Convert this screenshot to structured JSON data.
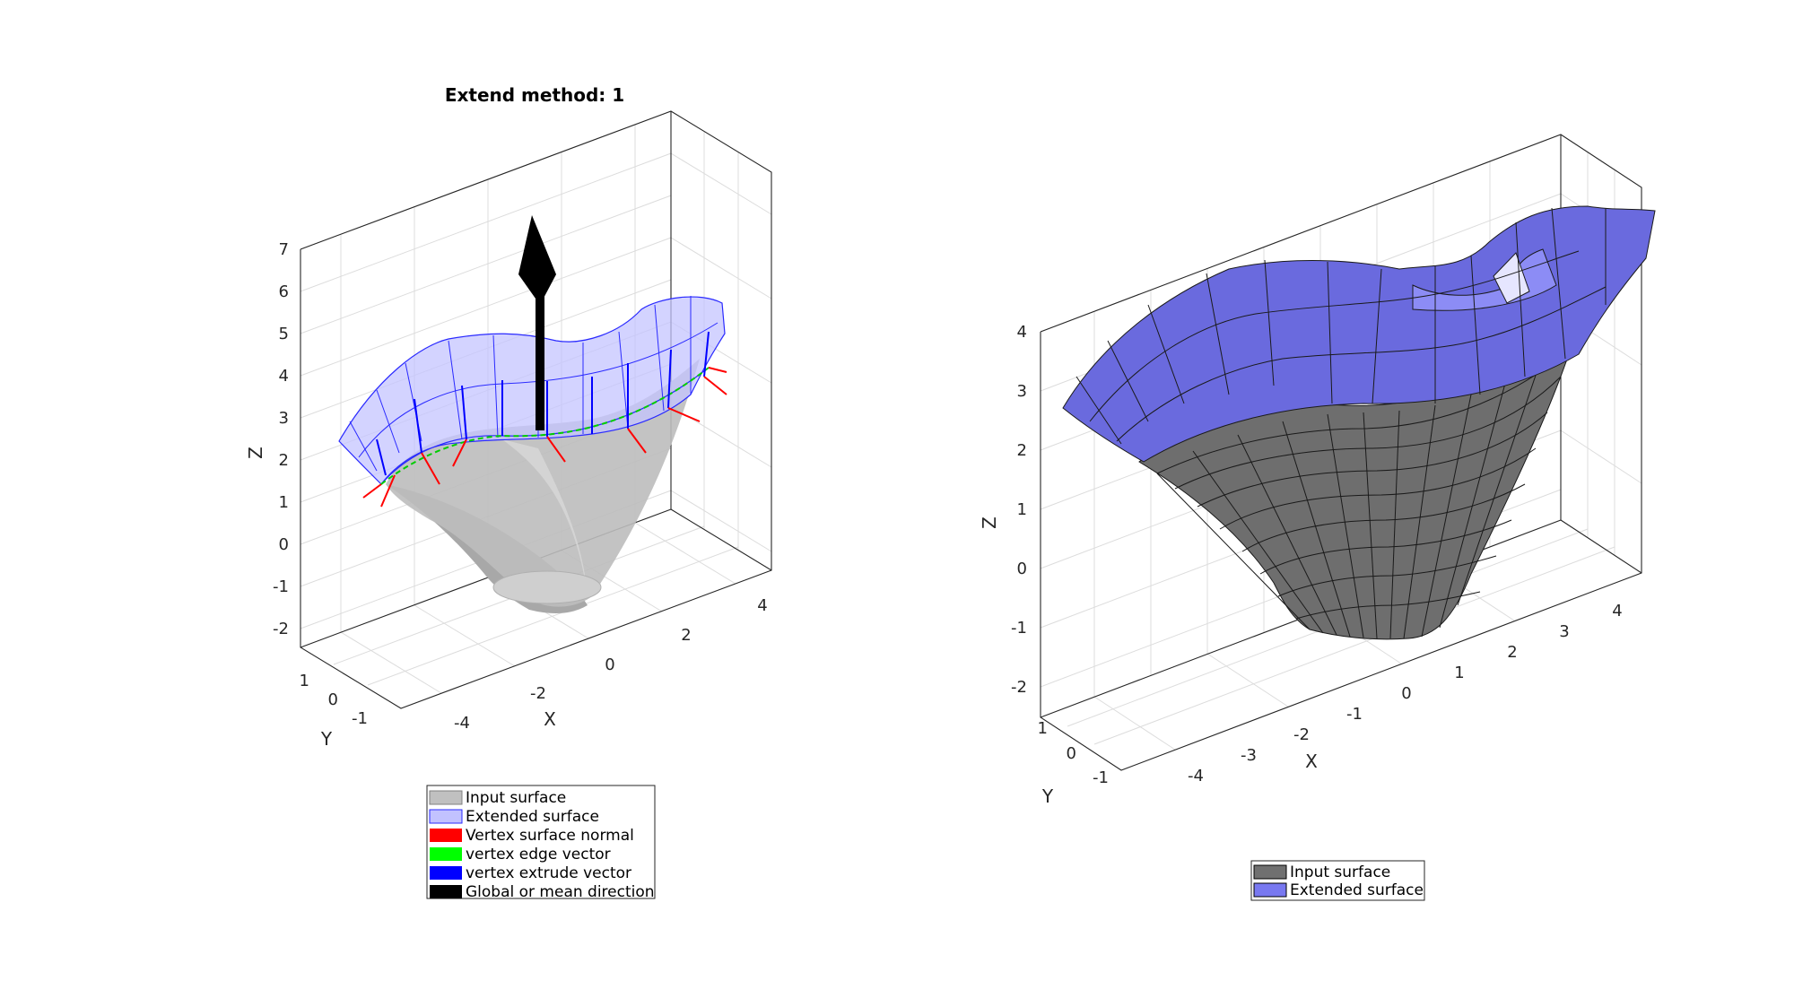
{
  "left": {
    "title": "Extend method: 1",
    "z_ticks": [
      "7",
      "6",
      "5",
      "4",
      "3",
      "2",
      "1",
      "0",
      "-1",
      "-2"
    ],
    "x_ticks": [
      "-4",
      "-2",
      "0",
      "2",
      "4"
    ],
    "y_ticks": [
      "1",
      "0",
      "-1"
    ],
    "xlabel": "X",
    "ylabel": "Y",
    "zlabel": "Z",
    "legend": [
      {
        "label": "Input surface",
        "color": "#c0c0c0"
      },
      {
        "label": "Extended surface",
        "color": "#c2c2ff"
      },
      {
        "label": "Vertex surface normal",
        "color": "#ff0000"
      },
      {
        "label": "vertex edge vector",
        "color": "#00ff00"
      },
      {
        "label": "vertex extrude vector",
        "color": "#0000ff"
      },
      {
        "label": "Global or mean direction",
        "color": "#000000"
      }
    ]
  },
  "right": {
    "z_ticks": [
      "4",
      "3",
      "2",
      "1",
      "0",
      "-1",
      "-2"
    ],
    "x_ticks": [
      "-4",
      "-3",
      "-2",
      "-1",
      "0",
      "1",
      "2",
      "3",
      "4"
    ],
    "y_ticks": [
      "1",
      "0",
      "-1"
    ],
    "xlabel": "X",
    "ylabel": "Y",
    "zlabel": "Z",
    "legend": [
      {
        "label": "Input surface",
        "color": "#707070"
      },
      {
        "label": "Extended surface",
        "color": "#7878f0"
      }
    ]
  }
}
